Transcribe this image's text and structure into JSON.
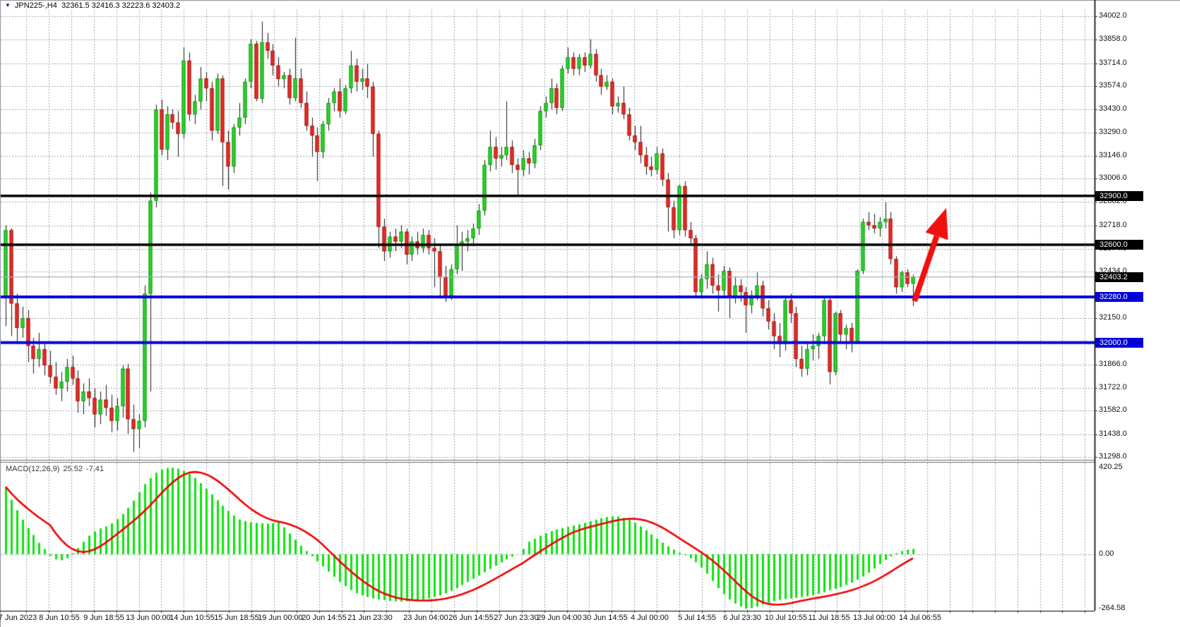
{
  "title_bar": {
    "collapse_icon": "▼",
    "symbol_period": "JPN225-,H4",
    "ohlc_readout": "32361.5 32416.3 32223.6 32403.2"
  },
  "macd_panel": {
    "name": "MACD(12,26,9)",
    "main_value": "25.52",
    "signal_value": "-7.41",
    "axis_max": "420.25",
    "axis_zero": "0.00",
    "axis_min": "-264.58"
  },
  "price_axis": {
    "labels": [
      "34002.0",
      "33858.0",
      "33714.0",
      "33574.0",
      "33430.0",
      "33290.0",
      "33146.0",
      "33006.0",
      "32862.0",
      "32718.0",
      "32574.0",
      "32434.0",
      "32150.0",
      "31866.0",
      "31722.0",
      "31582.0",
      "31438.0",
      "31298.0"
    ],
    "label_values": [
      34002,
      33858,
      33714,
      33574,
      33430,
      33290,
      33146,
      33006,
      32862,
      32718,
      32574,
      32434,
      32150,
      31866,
      31722,
      31582,
      31438,
      31298
    ],
    "badges": [
      {
        "text": "32900.0",
        "price": 32900,
        "bg": "#000000"
      },
      {
        "text": "32600.0",
        "price": 32600,
        "bg": "#000000"
      },
      {
        "text": "32403.2",
        "price": 32403.2,
        "bg": "#000000"
      },
      {
        "text": "32280.0",
        "price": 32280,
        "bg": "#0000d8"
      },
      {
        "text": "32000.0",
        "price": 32000,
        "bg": "#0000d8"
      }
    ]
  },
  "time_axis": {
    "labels": [
      "7 Jun 2023",
      "8 Jun 10:55",
      "9 Jun 18:55",
      "13 Jun 00:00",
      "14 Jun 10:55",
      "15 Jun 18:55",
      "19 Jun 00:00",
      "20 Jun 14:55",
      "21 Jun 23:30",
      "23 Jun 04:00",
      "26 Jun 14:55",
      "27 Jun 23:30",
      "29 Jun 04:00",
      "30 Jun 14:55",
      "4 Jul 00:00",
      "5 Jul 14:55",
      "6 Jul 23:30",
      "10 Jul 10:55",
      "11 Jul 18:55",
      "13 Jul 00:00",
      "14 Jul 06:55"
    ],
    "x_centers": [
      25,
      84,
      147,
      210,
      272,
      335,
      397,
      459,
      524,
      603,
      667,
      731,
      792,
      857,
      920,
      987,
      1051,
      1113,
      1174,
      1238,
      1303
    ]
  },
  "chart_data": {
    "type": "candlestick",
    "symbol": "JPN225-",
    "timeframe": "H4",
    "price_axis_top": 34002,
    "price_axis_bottom": 31298,
    "grid_price_values": [
      34002,
      33858,
      33714,
      33574,
      33430,
      33290,
      33146,
      33006,
      32862,
      32718,
      32574,
      32434,
      32290,
      32150,
      32000,
      31866,
      31722,
      31582,
      31438,
      31298
    ],
    "horizontal_lines": [
      {
        "price": 32900,
        "color": "#000000",
        "width": 3.5,
        "role": "resistance"
      },
      {
        "price": 32600,
        "color": "#000000",
        "width": 3.5,
        "role": "resistance"
      },
      {
        "price": 32403.2,
        "color": "#a8aeb8",
        "width": 1.2,
        "role": "current-price"
      },
      {
        "price": 32280,
        "color": "#0000e0",
        "width": 4,
        "role": "support"
      },
      {
        "price": 32000,
        "color": "#0000e0",
        "width": 4,
        "role": "support"
      }
    ],
    "arrow": {
      "tail": [
        1295,
        427
      ],
      "tip": [
        1340,
        295
      ],
      "color": "#f0100c",
      "shaft_width": 8,
      "head_length": 42,
      "head_half_width": 17
    },
    "colors": {
      "up_fill": "#30d230",
      "up_stroke": "#0c9a0c",
      "down_fill": "#e62e2a",
      "down_stroke": "#a61410",
      "wick": "#1a1a1a",
      "grid": "#9aa4b0",
      "macd_bar": "#0fe30f",
      "macd_signal": "#f20000"
    },
    "candles_ohlc": [
      [
        32285,
        32720,
        32100,
        32690
      ],
      [
        32690,
        32700,
        32040,
        32240
      ],
      [
        32240,
        32300,
        31990,
        32090
      ],
      [
        32090,
        32220,
        32030,
        32150
      ],
      [
        32150,
        32200,
        31880,
        31980
      ],
      [
        31980,
        32030,
        31810,
        31900
      ],
      [
        31900,
        32060,
        31850,
        31960
      ],
      [
        31960,
        31990,
        31800,
        31860
      ],
      [
        31860,
        31950,
        31750,
        31790
      ],
      [
        31790,
        31880,
        31680,
        31720
      ],
      [
        31720,
        31820,
        31640,
        31760
      ],
      [
        31760,
        31900,
        31700,
        31850
      ],
      [
        31850,
        31920,
        31740,
        31780
      ],
      [
        31780,
        31830,
        31570,
        31640
      ],
      [
        31640,
        31750,
        31560,
        31700
      ],
      [
        31700,
        31780,
        31610,
        31660
      ],
      [
        31660,
        31720,
        31480,
        31560
      ],
      [
        31560,
        31700,
        31500,
        31650
      ],
      [
        31650,
        31740,
        31550,
        31600
      ],
      [
        31600,
        31680,
        31450,
        31520
      ],
      [
        31520,
        31660,
        31460,
        31610
      ],
      [
        31610,
        31860,
        31540,
        31840
      ],
      [
        31840,
        31870,
        31440,
        31530
      ],
      [
        31530,
        31620,
        31330,
        31470
      ],
      [
        31470,
        31560,
        31350,
        31520
      ],
      [
        31520,
        32350,
        31480,
        32300
      ],
      [
        32300,
        32920,
        31700,
        32870
      ],
      [
        32870,
        33460,
        32830,
        33430
      ],
      [
        33430,
        33490,
        33150,
        33184
      ],
      [
        33184,
        33450,
        33120,
        33400
      ],
      [
        33400,
        33430,
        33310,
        33350
      ],
      [
        33350,
        33420,
        33140,
        33280
      ],
      [
        33280,
        33810,
        33250,
        33730
      ],
      [
        33730,
        33780,
        33360,
        33400
      ],
      [
        33400,
        33520,
        33340,
        33480
      ],
      [
        33480,
        33690,
        33430,
        33620
      ],
      [
        33620,
        33660,
        33480,
        33560
      ],
      [
        33560,
        33600,
        33240,
        33300
      ],
      [
        33300,
        33650,
        33280,
        33620
      ],
      [
        33620,
        33640,
        32960,
        33230
      ],
      [
        33230,
        33300,
        32940,
        33080
      ],
      [
        33080,
        33340,
        33040,
        33320
      ],
      [
        33320,
        33470,
        33270,
        33380
      ],
      [
        33380,
        33620,
        33340,
        33600
      ],
      [
        33600,
        33860,
        33560,
        33833
      ],
      [
        33833,
        33850,
        33480,
        33496
      ],
      [
        33496,
        33970,
        33470,
        33842
      ],
      [
        33842,
        33900,
        33740,
        33790
      ],
      [
        33790,
        33830,
        33640,
        33700
      ],
      [
        33700,
        33750,
        33570,
        33617
      ],
      [
        33617,
        33660,
        33560,
        33640
      ],
      [
        33640,
        33680,
        33460,
        33500
      ],
      [
        33500,
        33870,
        33480,
        33620
      ],
      [
        33620,
        33680,
        33440,
        33470
      ],
      [
        33470,
        33540,
        33300,
        33330
      ],
      [
        33330,
        33380,
        33140,
        33270
      ],
      [
        33270,
        33320,
        32990,
        33170
      ],
      [
        33170,
        33360,
        33130,
        33340
      ],
      [
        33340,
        33500,
        33300,
        33470
      ],
      [
        33470,
        33560,
        33420,
        33540
      ],
      [
        33540,
        33620,
        33380,
        33420
      ],
      [
        33420,
        33580,
        33400,
        33560
      ],
      [
        33560,
        33790,
        33530,
        33700
      ],
      [
        33700,
        33740,
        33540,
        33600
      ],
      [
        33600,
        33680,
        33550,
        33620
      ],
      [
        33620,
        33710,
        33500,
        33570
      ],
      [
        33570,
        33600,
        33140,
        33280
      ],
      [
        33280,
        33300,
        32580,
        32710
      ],
      [
        32710,
        32760,
        32500,
        32560
      ],
      [
        32560,
        32680,
        32520,
        32650
      ],
      [
        32650,
        32700,
        32560,
        32620
      ],
      [
        32620,
        32720,
        32580,
        32680
      ],
      [
        32680,
        32700,
        32480,
        32540
      ],
      [
        32540,
        32650,
        32500,
        32620
      ],
      [
        32620,
        32680,
        32540,
        32580
      ],
      [
        32580,
        32700,
        32550,
        32660
      ],
      [
        32660,
        32690,
        32540,
        32580
      ],
      [
        32580,
        32640,
        32340,
        32560
      ],
      [
        32560,
        32600,
        32270,
        32400
      ],
      [
        32400,
        32470,
        32250,
        32290
      ],
      [
        32290,
        32480,
        32260,
        32450
      ],
      [
        32450,
        32720,
        32420,
        32600
      ],
      [
        32600,
        32680,
        32440,
        32620
      ],
      [
        32620,
        32690,
        32560,
        32640
      ],
      [
        32640,
        32730,
        32590,
        32700
      ],
      [
        32700,
        32850,
        32660,
        32810
      ],
      [
        32810,
        33120,
        32780,
        33090
      ],
      [
        33090,
        33300,
        33050,
        33200
      ],
      [
        33200,
        33260,
        33060,
        33130
      ],
      [
        33130,
        33200,
        33080,
        33150
      ],
      [
        33150,
        33480,
        33120,
        33200
      ],
      [
        33200,
        33240,
        33040,
        33090
      ],
      [
        33090,
        33130,
        32900,
        33060
      ],
      [
        33060,
        33180,
        33020,
        33130
      ],
      [
        33130,
        33170,
        33030,
        33100
      ],
      [
        33100,
        33250,
        33070,
        33210
      ],
      [
        33210,
        33450,
        33180,
        33420
      ],
      [
        33420,
        33510,
        33380,
        33470
      ],
      [
        33470,
        33620,
        33430,
        33560
      ],
      [
        33560,
        33590,
        33400,
        33440
      ],
      [
        33440,
        33700,
        33420,
        33680
      ],
      [
        33680,
        33810,
        33650,
        33750
      ],
      [
        33750,
        33780,
        33640,
        33680
      ],
      [
        33680,
        33770,
        33640,
        33750
      ],
      [
        33750,
        33780,
        33660,
        33700
      ],
      [
        33700,
        33860,
        33680,
        33770
      ],
      [
        33770,
        33800,
        33600,
        33640
      ],
      [
        33640,
        33680,
        33520,
        33570
      ],
      [
        33570,
        33640,
        33550,
        33600
      ],
      [
        33600,
        33620,
        33400,
        33450
      ],
      [
        33450,
        33510,
        33410,
        33470
      ],
      [
        33470,
        33570,
        33370,
        33400
      ],
      [
        33400,
        33440,
        33240,
        33270
      ],
      [
        33270,
        33330,
        33180,
        33230
      ],
      [
        33230,
        33330,
        33100,
        33150
      ],
      [
        33150,
        33200,
        33030,
        33080
      ],
      [
        33080,
        33140,
        33020,
        33060
      ],
      [
        33060,
        33200,
        33030,
        33160
      ],
      [
        33160,
        33190,
        32960,
        33000
      ],
      [
        33000,
        33040,
        32680,
        32830
      ],
      [
        32830,
        32870,
        32640,
        32690
      ],
      [
        32690,
        32970,
        32660,
        32960
      ],
      [
        32960,
        32990,
        32650,
        32690
      ],
      [
        32690,
        32740,
        32600,
        32640
      ],
      [
        32640,
        32660,
        32280,
        32310
      ],
      [
        32310,
        32420,
        32270,
        32390
      ],
      [
        32390,
        32560,
        32330,
        32480
      ],
      [
        32480,
        32520,
        32300,
        32350
      ],
      [
        32350,
        32420,
        32190,
        32320
      ],
      [
        32320,
        32470,
        32290,
        32440
      ],
      [
        32440,
        32460,
        32150,
        32280
      ],
      [
        32280,
        32400,
        32240,
        32350
      ],
      [
        32350,
        32390,
        32250,
        32310
      ],
      [
        32310,
        32340,
        32060,
        32230
      ],
      [
        32230,
        32320,
        32180,
        32290
      ],
      [
        32290,
        32430,
        32260,
        32350
      ],
      [
        32350,
        32380,
        32160,
        32210
      ],
      [
        32210,
        32260,
        32080,
        32130
      ],
      [
        32130,
        32180,
        31960,
        32040
      ],
      [
        32040,
        32120,
        31910,
        31990
      ],
      [
        31990,
        32280,
        31950,
        32260
      ],
      [
        32260,
        32300,
        32120,
        32180
      ],
      [
        32180,
        32220,
        31850,
        31900
      ],
      [
        31900,
        31980,
        31790,
        31840
      ],
      [
        31840,
        32000,
        31800,
        31960
      ],
      [
        31960,
        32050,
        31890,
        31980
      ],
      [
        31980,
        32060,
        31900,
        32040
      ],
      [
        32040,
        32280,
        31990,
        32260
      ],
      [
        32260,
        32280,
        31744,
        31820
      ],
      [
        31820,
        32190,
        31800,
        32180
      ],
      [
        32180,
        32200,
        32000,
        32050
      ],
      [
        32050,
        32110,
        31960,
        32090
      ],
      [
        32090,
        32120,
        31940,
        32010
      ],
      [
        32010,
        32450,
        31990,
        32440
      ],
      [
        32440,
        32760,
        32420,
        32740
      ],
      [
        32740,
        32800,
        32690,
        32720
      ],
      [
        32720,
        32790,
        32670,
        32700
      ],
      [
        32700,
        32770,
        32650,
        32740
      ],
      [
        32740,
        32860,
        32700,
        32760
      ],
      [
        32760,
        32800,
        32480,
        32513
      ],
      [
        32513,
        32530,
        32300,
        32340
      ],
      [
        32340,
        32440,
        32310,
        32430
      ],
      [
        32430,
        32450,
        32340,
        32361
      ],
      [
        32361.5,
        32416.3,
        32223.6,
        32403.2
      ]
    ],
    "macd": {
      "params": "12,26,9",
      "axis_max": 420.25,
      "axis_min": -264.58,
      "last_main": 25.52,
      "last_signal": -7.41,
      "main": [
        327,
        264,
        213,
        167,
        127,
        93,
        55,
        25,
        -8,
        -25,
        -30,
        -20,
        5,
        30,
        60,
        90,
        110,
        125,
        135,
        150,
        170,
        195,
        225,
        260,
        300,
        340,
        370,
        395,
        410,
        418,
        420,
        415,
        405,
        390,
        370,
        345,
        318,
        290,
        262,
        235,
        210,
        188,
        168,
        160,
        155,
        152,
        150,
        148,
        150,
        155,
        130,
        100,
        70,
        40,
        15,
        -10,
        -35,
        -60,
        -85,
        -110,
        -135,
        -155,
        -175,
        -190,
        -200,
        -208,
        -215,
        -220,
        -224,
        -227,
        -229,
        -230,
        -229,
        -227,
        -224,
        -220,
        -215,
        -208,
        -200,
        -190,
        -178,
        -165,
        -150,
        -135,
        -120,
        -104,
        -88,
        -72,
        -56,
        -40,
        -25,
        -12,
        0,
        25,
        60,
        75,
        90,
        102,
        112,
        120,
        127,
        133,
        139,
        145,
        152,
        160,
        168,
        175,
        180,
        184,
        182,
        176,
        166,
        152,
        135,
        116,
        96,
        76,
        56,
        38,
        22,
        8,
        -5,
        -20,
        -40,
        -65,
        -95,
        -130,
        -165,
        -195,
        -220,
        -240,
        -255,
        -264.58,
        -262,
        -255,
        -245,
        -235,
        -228,
        -222,
        -218,
        -215,
        -212,
        -208,
        -205,
        -200,
        -193,
        -185,
        -175,
        -168,
        -160,
        -150,
        -138,
        -124,
        -108,
        -90,
        -70,
        -48,
        -28,
        -10,
        5,
        15,
        22,
        25.52
      ]
    }
  }
}
